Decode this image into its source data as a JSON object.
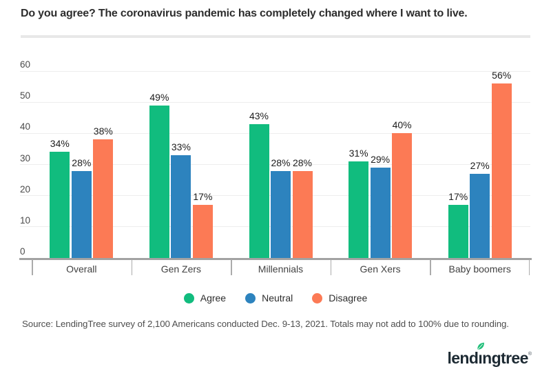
{
  "title": "Do you agree? The coronavirus pandemic has completely changed where I want to live.",
  "chart_data": {
    "type": "bar",
    "categories": [
      "Overall",
      "Gen Zers",
      "Millennials",
      "Gen Xers",
      "Baby boomers"
    ],
    "series": [
      {
        "name": "Agree",
        "color": "#11bc7e",
        "values": [
          34,
          49,
          43,
          31,
          17
        ]
      },
      {
        "name": "Neutral",
        "color": "#2d83be",
        "values": [
          28,
          33,
          28,
          29,
          27
        ]
      },
      {
        "name": "Disagree",
        "color": "#fc7a55",
        "values": [
          38,
          17,
          28,
          40,
          56
        ]
      }
    ],
    "value_suffix": "%",
    "ylim": [
      0,
      60
    ],
    "yticks": [
      0,
      10,
      20,
      30,
      40,
      50,
      60
    ],
    "grid": true,
    "legend_position": "bottom",
    "bar_label_position": "above"
  },
  "source_note": "Source: LendingTree survey of 2,100 Americans conducted Dec. 9-13, 2021. Totals may not add to 100% due to rounding.",
  "logo": {
    "brand": "lendingtree",
    "pre": "lend",
    "i": "ı",
    "post": "ngtree",
    "reg": "®",
    "text_color": "#1d2a33",
    "leaf_color": "#22bf7a"
  },
  "colors": {
    "background": "#ffffff",
    "title_text": "#2d2d2d",
    "gridline": "#ededed",
    "axis_line": "#a2a2a2",
    "axis_text": "#4a4a4a",
    "divider": "#e8e8e8"
  }
}
